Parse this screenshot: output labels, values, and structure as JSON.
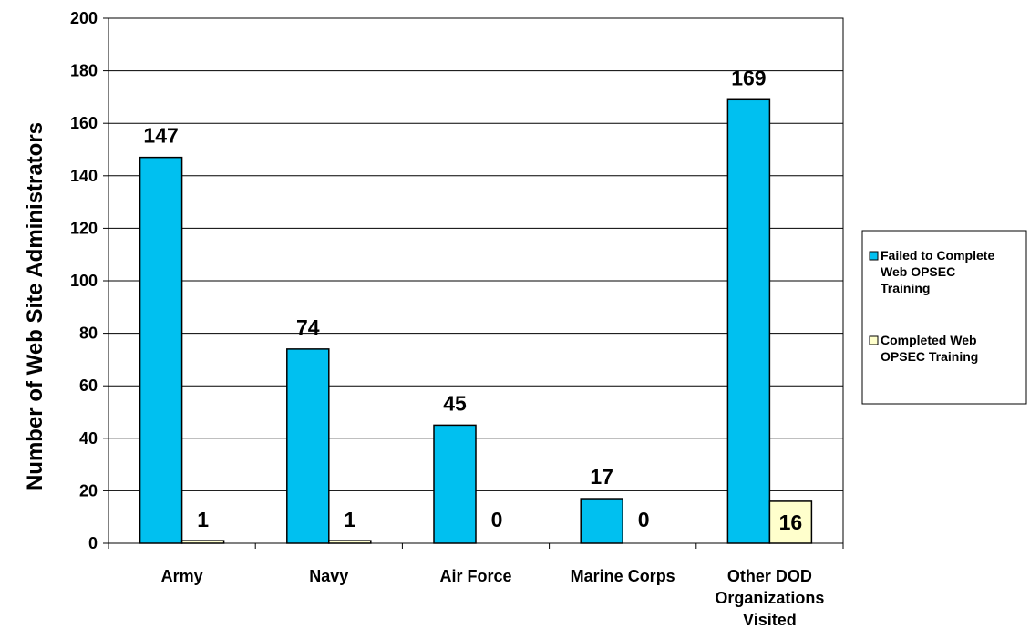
{
  "chart_data": {
    "type": "bar",
    "categories": [
      [
        "Army"
      ],
      [
        "Navy"
      ],
      [
        "Air Force"
      ],
      [
        "Marine Corps"
      ],
      [
        "Other DOD",
        "Organizations",
        "Visited"
      ]
    ],
    "series": [
      {
        "name": "Failed to Complete Web OPSEC Training",
        "legend_lines": [
          "Failed to Complete",
          "Web OPSEC",
          "Training"
        ],
        "color": "#00C0F0",
        "values": [
          147,
          74,
          45,
          17,
          169
        ]
      },
      {
        "name": "Completed Web OPSEC Training",
        "legend_lines": [
          "Completed Web",
          "OPSEC Training"
        ],
        "color": "#FFFFCC",
        "values": [
          1,
          1,
          0,
          0,
          16
        ]
      }
    ],
    "ylabel": "Number of Web Site Administrators",
    "xlabel": "",
    "title": "",
    "ylim": [
      0,
      200
    ],
    "yticks": [
      0,
      20,
      40,
      60,
      80,
      100,
      120,
      140,
      160,
      180,
      200
    ],
    "grid": true,
    "legend_position": "right"
  }
}
